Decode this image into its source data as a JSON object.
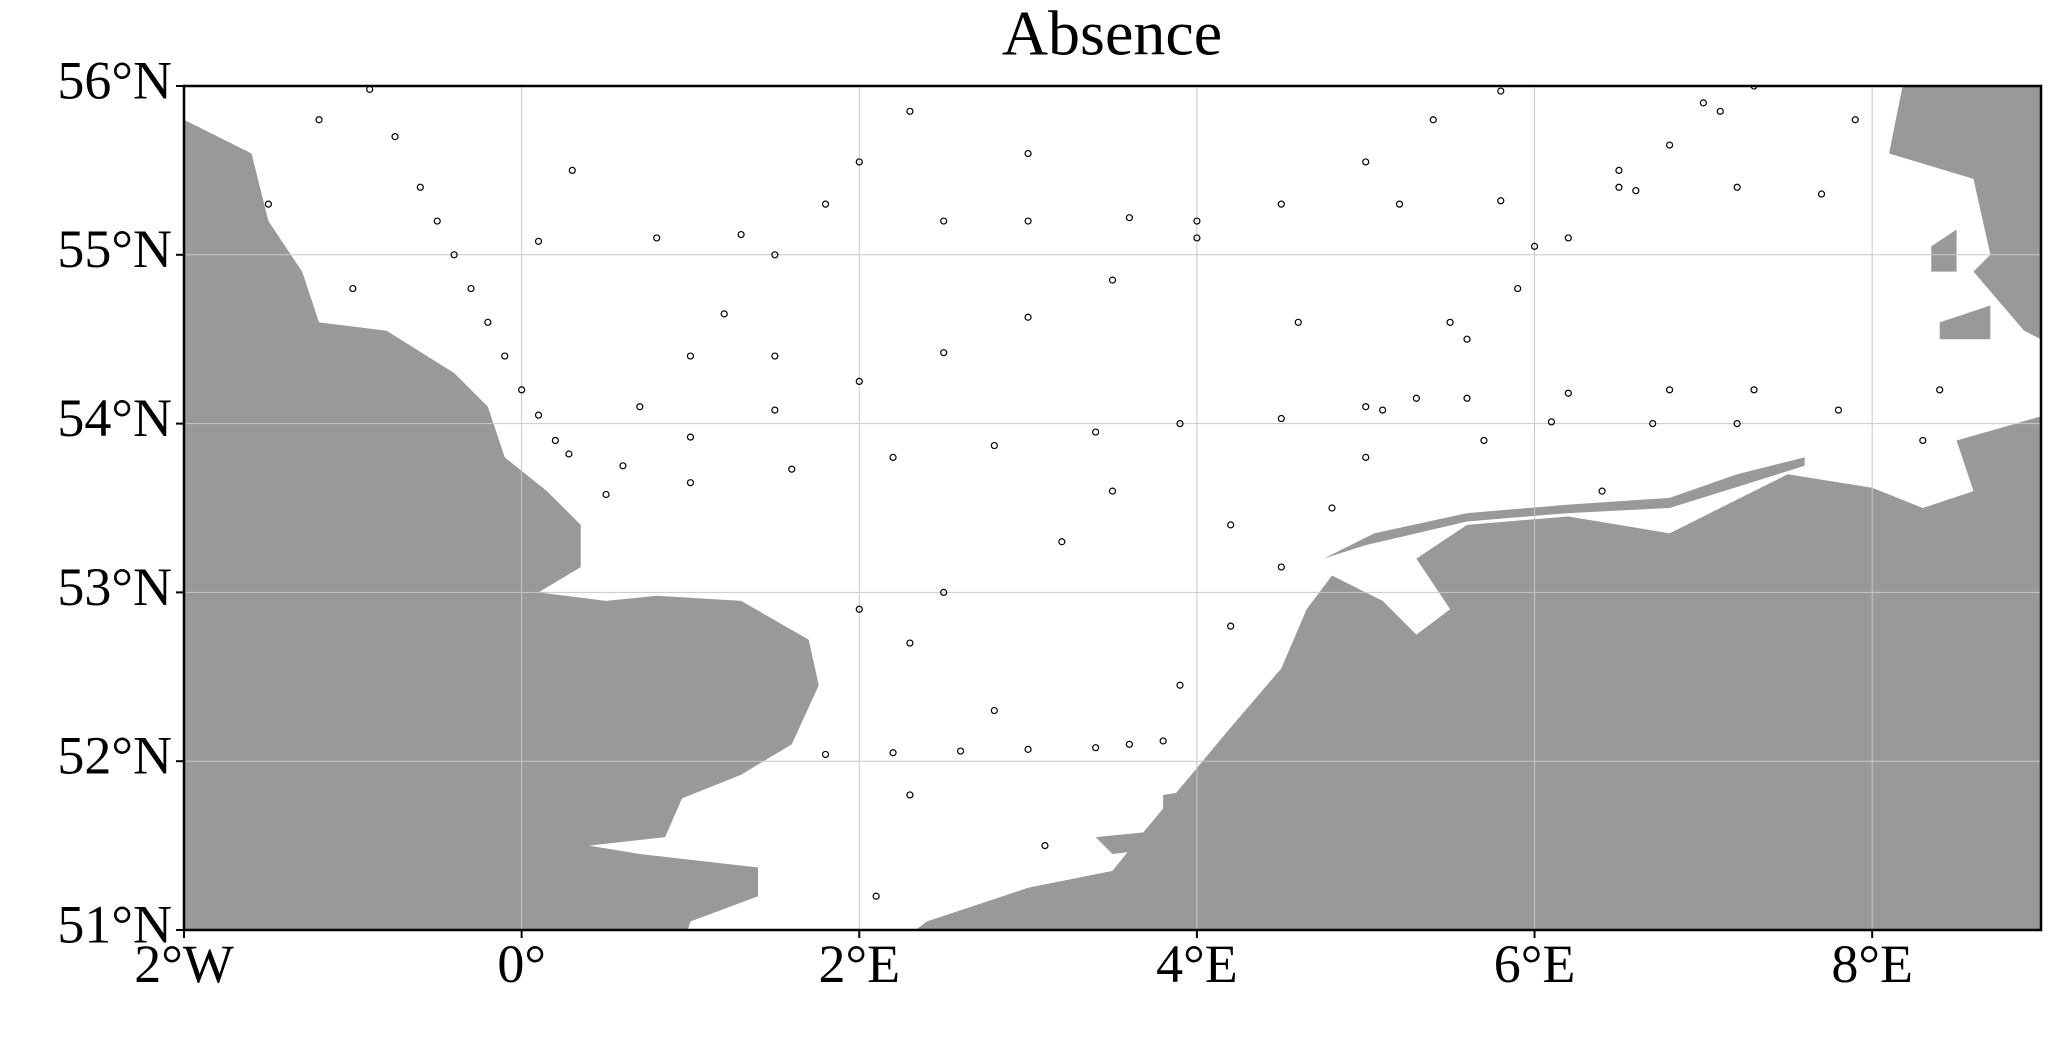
{
  "chart_data": {
    "type": "scatter",
    "title": "Absence",
    "xlim": [
      -2,
      9
    ],
    "ylim": [
      51,
      56
    ],
    "xticks": [
      {
        "value": -2,
        "label": "2°W"
      },
      {
        "value": 0,
        "label": "0°"
      },
      {
        "value": 2,
        "label": "2°E"
      },
      {
        "value": 4,
        "label": "4°E"
      },
      {
        "value": 6,
        "label": "6°E"
      },
      {
        "value": 8,
        "label": "8°E"
      }
    ],
    "yticks": [
      {
        "value": 51,
        "label": "51°N"
      },
      {
        "value": 52,
        "label": "52°N"
      },
      {
        "value": 53,
        "label": "53°N"
      },
      {
        "value": 54,
        "label": "54°N"
      },
      {
        "value": 55,
        "label": "55°N"
      },
      {
        "value": 56,
        "label": "56°N"
      }
    ],
    "grid": true,
    "land_color": "#999999",
    "series": [
      {
        "color": "#000000",
        "x": [
          -0.9,
          -0.75,
          -0.6,
          -0.5,
          -0.4,
          -0.3,
          -0.2,
          -0.1,
          0,
          0.1,
          0.2,
          0.28,
          0.6,
          1.0,
          1.5,
          2.0,
          2.5,
          3.0,
          3.5,
          4.0,
          4.5,
          5.0,
          5.4,
          5.8,
          0.5,
          1.0,
          1.6,
          2.2,
          2.8,
          3.4,
          3.9,
          4.5,
          5.1,
          5.6,
          6.2,
          6.8,
          7.3,
          7.8,
          6.1,
          6.7,
          7.2,
          3.6,
          3.9,
          4.2,
          4.5,
          4.8,
          5.0,
          5.3,
          5.6,
          5.9,
          6.2,
          6.5,
          6.8,
          7.1,
          7.3,
          5.0,
          5.5,
          6.0,
          6.5,
          7.0,
          1.8,
          2.2,
          2.6,
          3.0,
          3.4,
          3.8,
          0.7,
          1.0,
          1.2,
          1.5,
          1.8,
          2.0,
          2.3,
          0.1,
          0.8,
          1.3,
          2.5,
          3.0,
          3.6,
          4.0,
          5.2,
          5.8,
          6.6,
          7.2,
          7.7,
          2.0,
          2.3,
          3.2,
          4.2,
          1.5,
          2.5,
          3.5,
          0.3,
          -1.2,
          -1.5,
          -1.0,
          2.8,
          2.1,
          3.1,
          7.9,
          6.4,
          5.7,
          4.6,
          3.0,
          8.4,
          8.3,
          2.3
        ],
        "y": [
          55.98,
          55.7,
          55.4,
          55.2,
          55.0,
          54.8,
          54.6,
          54.4,
          54.2,
          54.05,
          53.9,
          53.82,
          53.75,
          53.92,
          54.08,
          54.25,
          54.42,
          54.63,
          54.85,
          55.1,
          55.3,
          55.55,
          55.8,
          55.97,
          53.58,
          53.65,
          53.73,
          53.8,
          53.87,
          53.95,
          54.0,
          54.03,
          54.08,
          54.15,
          54.18,
          54.2,
          54.2,
          54.08,
          54.01,
          54.0,
          54.0,
          52.1,
          52.45,
          52.8,
          53.15,
          53.5,
          53.8,
          54.15,
          54.5,
          54.8,
          55.1,
          55.4,
          55.65,
          55.85,
          56.0,
          54.1,
          54.6,
          55.05,
          55.5,
          55.9,
          52.04,
          52.05,
          52.06,
          52.07,
          52.08,
          52.12,
          54.1,
          54.4,
          54.65,
          55.0,
          55.3,
          55.55,
          55.85,
          55.08,
          55.1,
          55.12,
          55.2,
          55.2,
          55.22,
          55.2,
          55.3,
          55.32,
          55.38,
          55.4,
          55.36,
          52.9,
          52.7,
          53.3,
          53.4,
          54.4,
          53.0,
          53.6,
          55.5,
          55.8,
          55.3,
          54.8,
          52.3,
          51.2,
          51.5,
          55.8,
          53.6,
          53.9,
          54.6,
          55.6,
          54.2,
          53.9,
          51.8
        ]
      }
    ]
  }
}
